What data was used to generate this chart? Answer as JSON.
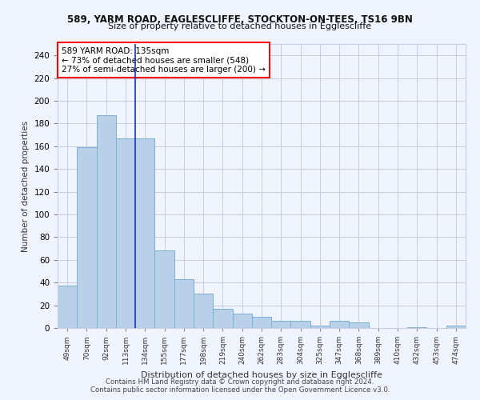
{
  "title1": "589, YARM ROAD, EAGLESCLIFFE, STOCKTON-ON-TEES, TS16 9BN",
  "title2": "Size of property relative to detached houses in Egglescliffe",
  "xlabel": "Distribution of detached houses by size in Egglescliffe",
  "ylabel": "Number of detached properties",
  "categories": [
    "49sqm",
    "70sqm",
    "92sqm",
    "113sqm",
    "134sqm",
    "155sqm",
    "177sqm",
    "198sqm",
    "219sqm",
    "240sqm",
    "262sqm",
    "283sqm",
    "304sqm",
    "325sqm",
    "347sqm",
    "368sqm",
    "389sqm",
    "410sqm",
    "432sqm",
    "453sqm",
    "474sqm"
  ],
  "values": [
    37,
    159,
    187,
    167,
    167,
    68,
    43,
    30,
    17,
    13,
    10,
    6,
    6,
    2,
    6,
    5,
    0,
    0,
    1,
    0,
    2
  ],
  "bar_color": "#b8d0e8",
  "bar_edge_color": "#7aafd4",
  "vline_color": "#1a2fcc",
  "annotation_text": "589 YARM ROAD: 135sqm\n← 73% of detached houses are smaller (548)\n27% of semi-detached houses are larger (200) →",
  "annotation_box_color": "white",
  "annotation_box_edge": "red",
  "ylim": [
    0,
    250
  ],
  "yticks": [
    0,
    20,
    40,
    60,
    80,
    100,
    120,
    140,
    160,
    180,
    200,
    220,
    240
  ],
  "footer1": "Contains HM Land Registry data © Crown copyright and database right 2024.",
  "footer2": "Contains public sector information licensed under the Open Government Licence v3.0.",
  "bg_color": "#f0f4ff",
  "grid_color": "#c8cce0",
  "vline_xindex": 3.5
}
